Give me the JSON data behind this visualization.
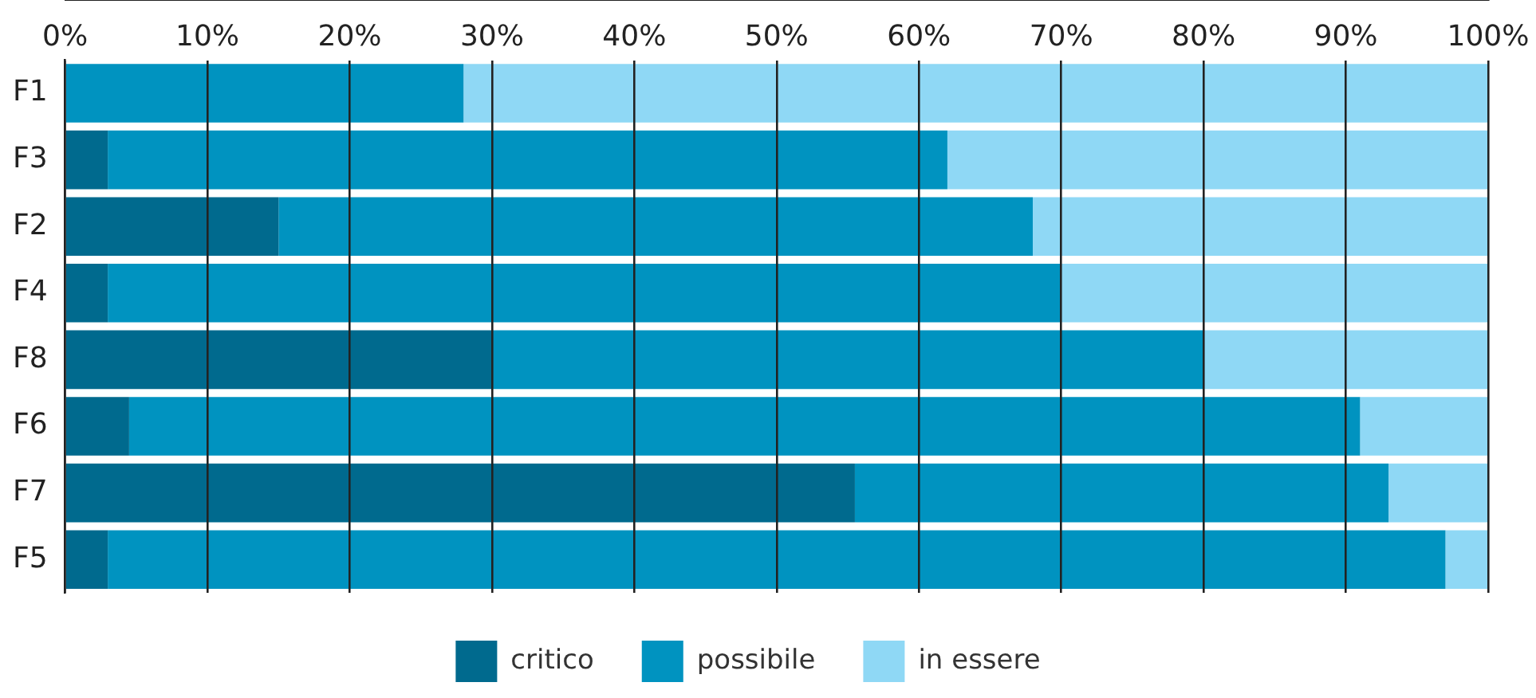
{
  "chart_data": {
    "type": "bar",
    "orientation": "horizontal",
    "stacked": true,
    "categories": [
      "F1",
      "F3",
      "F2",
      "F4",
      "F8",
      "F6",
      "F7",
      "F5"
    ],
    "series": [
      {
        "name": "critico",
        "color": "#006a8e",
        "values": [
          0,
          3,
          15,
          3,
          30,
          4.5,
          55.5,
          3
        ]
      },
      {
        "name": "possibile",
        "color": "#0093c0",
        "values": [
          28,
          59,
          53,
          67,
          50,
          86.5,
          37.5,
          94
        ]
      },
      {
        "name": "in essere",
        "color": "#8fd8f5",
        "values": [
          72,
          38,
          32,
          30,
          20,
          9,
          7,
          3
        ]
      }
    ],
    "xlim": [
      0,
      100
    ],
    "xticks": [
      {
        "value": 0,
        "label": "0%"
      },
      {
        "value": 10,
        "label": "10%"
      },
      {
        "value": 20,
        "label": "20%"
      },
      {
        "value": 30,
        "label": "30%"
      },
      {
        "value": 40,
        "label": "40%"
      },
      {
        "value": 50,
        "label": "50%"
      },
      {
        "value": 60,
        "label": "60%"
      },
      {
        "value": 70,
        "label": "70%"
      },
      {
        "value": 80,
        "label": "80%"
      },
      {
        "value": 90,
        "label": "90%"
      },
      {
        "value": 100,
        "label": "100%"
      }
    ],
    "grid": "x",
    "legend": "bottom"
  }
}
